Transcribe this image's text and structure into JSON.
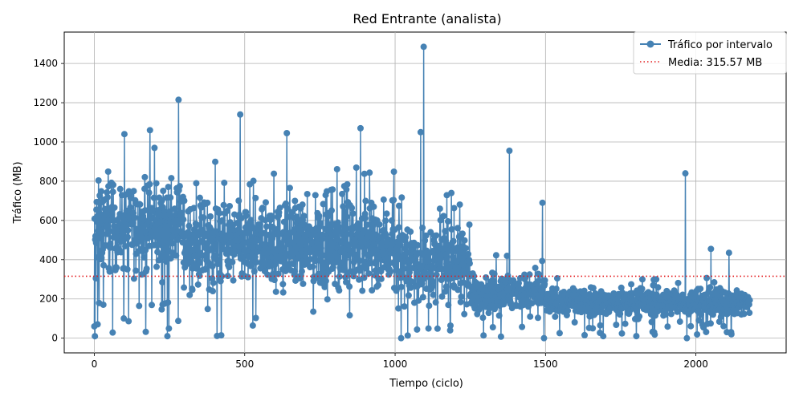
{
  "chart_data": {
    "type": "line",
    "title": "Red Entrante (analista)",
    "xlabel": "Tiempo (ciclo)",
    "ylabel": "Tráfico (MB)",
    "xlim": [
      -100,
      2300
    ],
    "ylim": [
      -75,
      1560
    ],
    "x_ticks": [
      0,
      500,
      1000,
      1500,
      2000
    ],
    "y_ticks": [
      0,
      200,
      400,
      600,
      800,
      1000,
      1200,
      1400
    ],
    "grid": true,
    "legend_position": "top-right",
    "series": [
      {
        "name": "Tráfico por intervalo",
        "color": "#4682b4",
        "marker": "circle",
        "x_start": 0,
        "x_step": 1,
        "segments": [
          {
            "from": 0,
            "to": 300,
            "mean": 560,
            "spread": 200
          },
          {
            "from": 300,
            "to": 1000,
            "mean": 470,
            "spread": 200
          },
          {
            "from": 1000,
            "to": 1250,
            "mean": 380,
            "spread": 170
          },
          {
            "from": 1250,
            "to": 1500,
            "mean": 230,
            "spread": 90
          },
          {
            "from": 1500,
            "to": 2180,
            "mean": 180,
            "spread": 60
          }
        ],
        "notable_points": [
          {
            "x": 0,
            "y": 60
          },
          {
            "x": 2,
            "y": 10
          },
          {
            "x": 5,
            "y": 305
          },
          {
            "x": 100,
            "y": 1040
          },
          {
            "x": 185,
            "y": 1060
          },
          {
            "x": 280,
            "y": 1215
          },
          {
            "x": 485,
            "y": 1140
          },
          {
            "x": 640,
            "y": 1045
          },
          {
            "x": 885,
            "y": 1070
          },
          {
            "x": 1085,
            "y": 1050
          },
          {
            "x": 1095,
            "y": 1485
          },
          {
            "x": 1020,
            "y": 0
          },
          {
            "x": 1380,
            "y": 955
          },
          {
            "x": 1490,
            "y": 690
          },
          {
            "x": 1495,
            "y": 0
          },
          {
            "x": 1965,
            "y": 840
          },
          {
            "x": 1970,
            "y": 0
          },
          {
            "x": 2050,
            "y": 455
          },
          {
            "x": 2110,
            "y": 435
          }
        ]
      }
    ],
    "mean_line": {
      "name": "Media: 315.57 MB",
      "value": 315.57,
      "color": "#e31a1c",
      "style": "dotted"
    }
  }
}
